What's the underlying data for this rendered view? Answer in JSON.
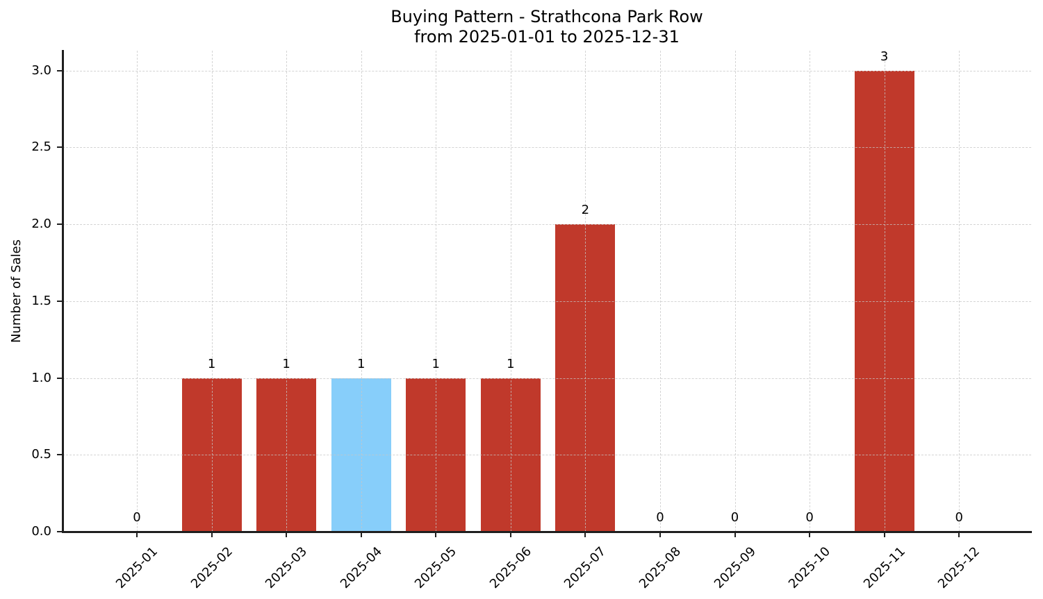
{
  "title": {
    "line1": "Buying Pattern - Strathcona Park Row",
    "line2": "from 2025-01-01 to 2025-12-31"
  },
  "chart_data": {
    "type": "bar",
    "title": "Buying Pattern - Strathcona Park Row\nfrom 2025-01-01 to 2025-12-31",
    "categories": [
      "2025-01",
      "2025-02",
      "2025-03",
      "2025-04",
      "2025-05",
      "2025-06",
      "2025-07",
      "2025-08",
      "2025-09",
      "2025-10",
      "2025-11",
      "2025-12"
    ],
    "values": [
      0,
      1,
      1,
      1,
      1,
      1,
      2,
      0,
      0,
      0,
      3,
      0
    ],
    "value_labels": [
      "0",
      "1",
      "1",
      "1",
      "1",
      "1",
      "2",
      "0",
      "0",
      "0",
      "3",
      "0"
    ],
    "bar_colors": [
      "#c0392b",
      "#c0392b",
      "#c0392b",
      "#87CEFA",
      "#c0392b",
      "#c0392b",
      "#c0392b",
      "#c0392b",
      "#c0392b",
      "#c0392b",
      "#c0392b",
      "#c0392b"
    ],
    "xlabel": "",
    "ylabel": "Number of Sales",
    "ylim": [
      0,
      3.13
    ],
    "yticks": [
      "0.0",
      "0.5",
      "1.0",
      "1.5",
      "2.0",
      "2.5",
      "3.0"
    ],
    "grid": "dashed-both-axes-above-bars",
    "legend": "none",
    "x_tick_rotation": 45
  },
  "colors": {
    "bar_default": "#c0392b",
    "bar_highlight": "#87CEFA",
    "grid": "#c5c5c5",
    "axis": "#1f1f1f",
    "text": "#000000",
    "background": "#ffffff"
  }
}
